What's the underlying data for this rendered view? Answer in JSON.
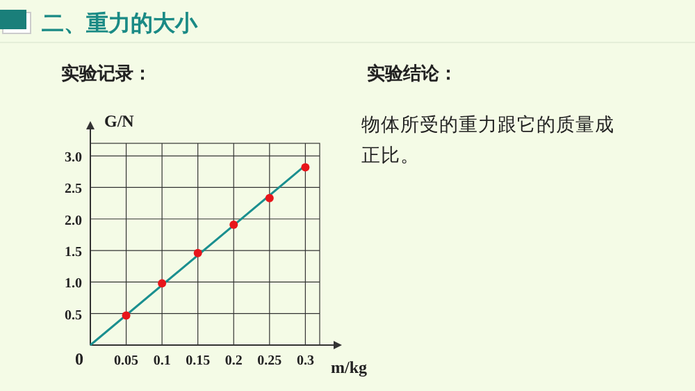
{
  "chart_data": {
    "type": "scatter",
    "title": "二、重力的大小",
    "subtitle": "实验记录：",
    "annotations": [
      "实验结论：",
      "物体所受的重力跟它的质量成正比。"
    ],
    "xlabel": "m/kg",
    "ylabel": "G/N",
    "xlim": [
      0,
      0.32
    ],
    "ylim": [
      0,
      3.2
    ],
    "xticks": [
      0,
      0.05,
      0.1,
      0.15,
      0.2,
      0.25,
      0.3
    ],
    "yticks": [
      0.5,
      {
        "value": 1,
        "label": "1.0"
      },
      1.5,
      {
        "value": 2,
        "label": "2.0"
      },
      2.5,
      {
        "value": 3,
        "label": "3.0"
      }
    ],
    "grid": true,
    "series": [
      {
        "color": "#e8151b",
        "marker": "circle",
        "x": [
          0.05,
          0.1,
          0.15,
          0.2,
          0.25,
          0.3
        ],
        "values": [
          0.47,
          0.98,
          1.46,
          1.91,
          2.33,
          2.82
        ]
      },
      {
        "type": "line",
        "color": "#1a8f8f",
        "x": [
          0,
          0.3
        ],
        "values": [
          0,
          2.85
        ],
        "marker": "none"
      }
    ]
  }
}
